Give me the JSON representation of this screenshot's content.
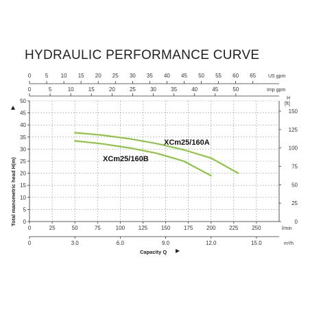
{
  "chart_data": {
    "type": "line",
    "title": "HYDRAULIC PERFORMANCE CURVE",
    "xlabel": "Capacity Q",
    "ylabel": "Total manometric head H(m)",
    "grid": true,
    "axes": {
      "bottom_lmin": {
        "unit": "l/min",
        "range": [
          0,
          275
        ],
        "ticks": [
          "0",
          "25",
          "50",
          "75",
          "100",
          "125",
          "150",
          "175",
          "200",
          "225",
          "250"
        ]
      },
      "bottom_m3h": {
        "unit": "m³/h",
        "range": [
          0,
          16.5
        ],
        "ticks": [
          "0",
          "3.0",
          "6.0",
          "9.0",
          "12.0",
          "15.0"
        ]
      },
      "top_usgpm": {
        "unit": "US gpm",
        "ticks": [
          "0",
          "5",
          "10",
          "15",
          "20",
          "25",
          "30",
          "35",
          "40",
          "45",
          "50",
          "55",
          "60",
          "65"
        ]
      },
      "top_impgpm": {
        "unit": "Imp gpm",
        "ticks": [
          "0",
          "5",
          "10",
          "15",
          "20",
          "25",
          "30",
          "35",
          "40",
          "45",
          "50"
        ]
      },
      "left_m": {
        "unit": "",
        "range": [
          0,
          50
        ],
        "ticks": [
          "0",
          "5",
          "10",
          "15",
          "20",
          "25",
          "30",
          "35",
          "40",
          "45",
          "50"
        ]
      },
      "right_ft": {
        "unit": "H (ft)",
        "unit_top": "H",
        "unit_bottom": "[ft]",
        "ticks": [
          "0",
          "25",
          "50",
          "75",
          "100",
          "125",
          "150"
        ]
      }
    },
    "series": [
      {
        "name": "XCm25/160A",
        "color": "#8cc63f",
        "points": [
          [
            50,
            36.8
          ],
          [
            80,
            35.8
          ],
          [
            110,
            34.3
          ],
          [
            140,
            32.3
          ],
          [
            170,
            29.7
          ],
          [
            200,
            26.3
          ],
          [
            230,
            20.0
          ]
        ]
      },
      {
        "name": "XCm25/160B",
        "color": "#8cc63f",
        "points": [
          [
            50,
            33.4
          ],
          [
            80,
            32.2
          ],
          [
            110,
            30.5
          ],
          [
            140,
            28.3
          ],
          [
            170,
            25.0
          ],
          [
            200,
            19.0
          ]
        ]
      }
    ],
    "labels": {
      "usgpm": "US gpm",
      "impgpm": "Imp gpm",
      "lmin": "l/min",
      "m3h": "m³/h",
      "ft_top": "H",
      "ft_bottom": "[ft]",
      "series_a": "XCm25/160A",
      "series_b": "XCm25/160B",
      "capacity": "Capacity Q",
      "head": "Total manometric head H(m)"
    }
  }
}
